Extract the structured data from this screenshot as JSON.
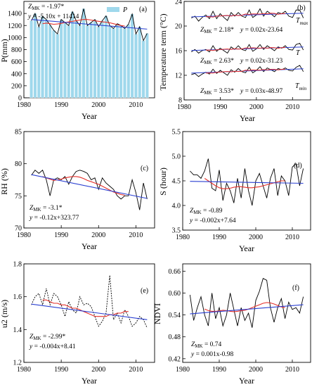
{
  "chart_data": [
    {
      "panel": "(a)",
      "type": "bar+line",
      "ylabel": "P(mm)",
      "xlabel": "Year",
      "xlim": [
        1980,
        2015
      ],
      "ylim": [
        0,
        1600
      ],
      "xticks": [
        1980,
        1990,
        2000,
        2010
      ],
      "yticks": [
        0,
        200,
        400,
        600,
        800,
        1000,
        1200,
        1400
      ],
      "legend": "P",
      "legend_position": "top-right",
      "annotations": [
        "Z_MK = -1.97*",
        "y = -5.10x + 11414"
      ],
      "x": [
        1982,
        1983,
        1984,
        1985,
        1986,
        1987,
        1988,
        1989,
        1990,
        1991,
        1992,
        1993,
        1994,
        1995,
        1996,
        1997,
        1998,
        1999,
        2000,
        2001,
        2002,
        2003,
        2004,
        2005,
        2006,
        2007,
        2008,
        2009,
        2010,
        2011,
        2012,
        2013
      ],
      "series": [
        {
          "name": "P",
          "kind": "bar",
          "values": [
            1280,
            1400,
            1180,
            1350,
            1300,
            1210,
            1120,
            1060,
            1300,
            1250,
            1200,
            1430,
            1280,
            1200,
            1480,
            1200,
            1250,
            1300,
            1180,
            1280,
            1360,
            1200,
            1150,
            1230,
            1200,
            1150,
            1220,
            1390,
            1060,
            1180,
            950,
            1070
          ]
        },
        {
          "kind": "smooth",
          "values": [
            null,
            null,
            null,
            1230,
            1240,
            1230,
            1220,
            1225,
            1235,
            1250,
            1260,
            1270,
            1280,
            1290,
            1300,
            1300,
            1290,
            1280,
            1270,
            1260,
            1255,
            1245,
            1230,
            1215,
            1200,
            1190,
            null,
            null,
            null,
            null,
            null,
            null
          ]
        },
        {
          "kind": "trend",
          "values": [
            1300,
            null,
            null,
            null,
            null,
            null,
            null,
            null,
            null,
            null,
            null,
            null,
            null,
            null,
            null,
            null,
            null,
            null,
            null,
            null,
            null,
            null,
            null,
            null,
            null,
            null,
            null,
            null,
            null,
            null,
            null,
            1140
          ]
        }
      ]
    },
    {
      "panel": "(b)",
      "type": "line",
      "ylabel": "Temperature term (°C)",
      "xlabel": "Year",
      "xlim": [
        1980,
        2015
      ],
      "ylim": [
        8,
        24
      ],
      "xticks": [
        1980,
        1990,
        2000,
        2010
      ],
      "yticks": [
        8,
        12,
        16,
        20,
        24
      ],
      "x": [
        1982,
        1983,
        1984,
        1985,
        1986,
        1987,
        1988,
        1989,
        1990,
        1991,
        1992,
        1993,
        1994,
        1995,
        1996,
        1997,
        1998,
        1999,
        2000,
        2001,
        2002,
        2003,
        2004,
        2005,
        2006,
        2007,
        2008,
        2009,
        2010,
        2011,
        2012,
        2013
      ],
      "series": [
        {
          "label": "T_max",
          "values": [
            21.3,
            21.6,
            20.8,
            21.4,
            21.8,
            21.2,
            22.4,
            21.2,
            22.0,
            21.4,
            20.9,
            22.2,
            21.6,
            22.2,
            21.6,
            21.4,
            22.6,
            21.4,
            21.8,
            22.8,
            21.6,
            22.4,
            22.0,
            21.5,
            22.2,
            22.0,
            22.4,
            21.6,
            21.4,
            22.6,
            22.6,
            21.3
          ],
          "annotation": [
            "Z_MK = 2.18*",
            "y = 0.02x-23.64"
          ]
        },
        {
          "label": "T",
          "values": [
            15.8,
            16.2,
            15.6,
            16.0,
            16.2,
            15.8,
            16.8,
            15.9,
            16.4,
            16.0,
            15.6,
            16.6,
            16.2,
            16.8,
            16.2,
            16.0,
            17.0,
            15.9,
            16.3,
            17.0,
            16.2,
            16.8,
            16.4,
            16.0,
            16.6,
            16.4,
            16.8,
            16.2,
            16.1,
            17.0,
            17.2,
            16.1
          ],
          "annotation": [
            "Z_MK = 2.63*",
            "y = 0.02x-31.23"
          ]
        },
        {
          "label": "T_min",
          "values": [
            12.1,
            12.3,
            11.8,
            12.2,
            12.5,
            12.2,
            13.0,
            12.3,
            12.8,
            12.4,
            12.0,
            12.9,
            12.5,
            13.1,
            12.6,
            12.4,
            13.3,
            12.4,
            12.8,
            13.4,
            12.6,
            13.2,
            12.9,
            12.6,
            13.1,
            12.9,
            13.2,
            12.8,
            12.7,
            13.3,
            13.6,
            12.6
          ],
          "annotation": [
            "Z_MK = 3.53*",
            "y = 0.03x-48.97"
          ]
        }
      ]
    },
    {
      "panel": "(c)",
      "type": "line",
      "ylabel": "RH (%)",
      "xlabel": "Year",
      "xlim": [
        1980,
        2015
      ],
      "ylim": [
        70,
        85
      ],
      "xticks": [
        1980,
        1990,
        2000,
        2010
      ],
      "yticks": [
        70,
        75,
        80,
        85
      ],
      "annotations": [
        "Z_MK = -3.1*",
        "y = -0.12x+323.77"
      ],
      "x": [
        1982,
        1983,
        1984,
        1985,
        1986,
        1987,
        1988,
        1989,
        1990,
        1991,
        1992,
        1993,
        1994,
        1995,
        1996,
        1997,
        1998,
        1999,
        2000,
        2001,
        2002,
        2003,
        2004,
        2005,
        2006,
        2007,
        2008,
        2009,
        2010,
        2011,
        2012,
        2013
      ],
      "series": [
        {
          "kind": "observed",
          "values": [
            78.2,
            79.0,
            78.5,
            79.0,
            77.5,
            75.0,
            77.5,
            77.8,
            77.5,
            78.0,
            76.8,
            78.0,
            78.8,
            79.0,
            78.8,
            78.5,
            77.5,
            77.8,
            76.0,
            77.8,
            77.0,
            76.5,
            76.0,
            75.0,
            74.5,
            75.0,
            75.0,
            77.5,
            75.5,
            72.8,
            77.0,
            74.5
          ]
        },
        {
          "kind": "smooth",
          "values": [
            null,
            null,
            null,
            78.0,
            77.8,
            77.6,
            77.4,
            77.5,
            77.6,
            77.8,
            77.9,
            78.0,
            78.0,
            77.9,
            77.7,
            77.4,
            77.2,
            77.0,
            76.8,
            76.5,
            76.2,
            75.9,
            75.6,
            75.4,
            75.2,
            75.1,
            null,
            null,
            null,
            null,
            null,
            null
          ]
        },
        {
          "kind": "trend",
          "values": [
            78.3,
            null,
            null,
            null,
            null,
            null,
            null,
            null,
            null,
            null,
            null,
            null,
            null,
            null,
            null,
            null,
            null,
            null,
            null,
            null,
            null,
            null,
            null,
            null,
            null,
            null,
            null,
            null,
            null,
            null,
            null,
            74.6
          ]
        }
      ]
    },
    {
      "panel": "(d)",
      "type": "line",
      "ylabel": "S (hour)",
      "xlabel": "Year",
      "xlim": [
        1980,
        2015
      ],
      "ylim": [
        3.5,
        5.5
      ],
      "xticks": [
        1980,
        1990,
        2000,
        2010
      ],
      "yticks": [
        3.5,
        4.0,
        4.5,
        5.0,
        5.5
      ],
      "annotations": [
        "Z_MK = -0.89",
        "y = -0.002x+7.64"
      ],
      "x": [
        1982,
        1983,
        1984,
        1985,
        1986,
        1987,
        1988,
        1989,
        1990,
        1991,
        1992,
        1993,
        1994,
        1995,
        1996,
        1997,
        1998,
        1999,
        2000,
        2001,
        2002,
        2003,
        2004,
        2005,
        2006,
        2007,
        2008,
        2009,
        2010,
        2011,
        2012,
        2013
      ],
      "series": [
        {
          "kind": "observed",
          "values": [
            4.7,
            4.62,
            4.62,
            4.55,
            4.7,
            4.95,
            4.35,
            4.3,
            4.72,
            4.1,
            4.45,
            4.3,
            4.05,
            4.55,
            4.15,
            4.75,
            4.3,
            4.0,
            4.5,
            4.65,
            4.4,
            4.15,
            4.55,
            4.75,
            4.2,
            4.6,
            4.5,
            4.2,
            4.78,
            4.85,
            4.4,
            4.75
          ]
        },
        {
          "kind": "smooth",
          "values": [
            null,
            null,
            null,
            null,
            4.55,
            4.5,
            4.45,
            4.4,
            4.36,
            4.34,
            4.34,
            4.35,
            4.37,
            4.38,
            4.38,
            4.37,
            4.36,
            4.36,
            4.37,
            4.38,
            4.4,
            4.42,
            4.44,
            4.46,
            4.48,
            4.5,
            4.5,
            null,
            null,
            null,
            null,
            null
          ]
        },
        {
          "kind": "trend",
          "values": [
            4.49,
            null,
            null,
            null,
            null,
            null,
            null,
            null,
            null,
            null,
            null,
            null,
            null,
            null,
            null,
            null,
            null,
            null,
            null,
            null,
            null,
            null,
            null,
            null,
            null,
            null,
            null,
            null,
            null,
            null,
            null,
            4.45
          ]
        }
      ]
    },
    {
      "panel": "(e)",
      "type": "line",
      "ylabel": "u2 (m/s)",
      "xlabel": "Year",
      "xlim": [
        1980,
        2015
      ],
      "ylim": [
        1.2,
        1.8
      ],
      "xticks": [
        1980,
        1990,
        2000,
        2010
      ],
      "yticks": [
        1.2,
        1.4,
        1.6,
        1.8
      ],
      "annotations": [
        "Z_MK = -2.99*",
        "y = -0.004x+8.41"
      ],
      "x": [
        1982,
        1983,
        1984,
        1985,
        1986,
        1987,
        1988,
        1989,
        1990,
        1991,
        1992,
        1993,
        1994,
        1995,
        1996,
        1997,
        1998,
        1999,
        2000,
        2001,
        2002,
        2003,
        2004,
        2005,
        2006,
        2007,
        2008,
        2009,
        2010,
        2011,
        2012,
        2013
      ],
      "series": [
        {
          "kind": "observed",
          "values": [
            1.55,
            1.6,
            1.62,
            1.55,
            1.65,
            1.55,
            1.62,
            1.6,
            1.55,
            1.48,
            1.57,
            1.52,
            1.5,
            1.6,
            1.55,
            1.56,
            1.54,
            1.48,
            1.42,
            1.45,
            1.5,
            1.73,
            1.46,
            1.5,
            1.44,
            1.52,
            1.48,
            1.42,
            1.44,
            1.48,
            1.46,
            1.41
          ]
        },
        {
          "kind": "smooth",
          "values": [
            null,
            null,
            null,
            1.58,
            1.58,
            1.57,
            1.56,
            1.56,
            1.55,
            1.55,
            1.54,
            1.53,
            1.53,
            1.52,
            1.51,
            1.5,
            1.49,
            1.48,
            1.48,
            1.48,
            1.48,
            1.49,
            1.49,
            1.5,
            1.5,
            1.51,
            1.51,
            null,
            null,
            null,
            null,
            null
          ]
        },
        {
          "kind": "trend",
          "values": [
            1.555,
            null,
            null,
            null,
            null,
            null,
            null,
            null,
            null,
            null,
            null,
            null,
            null,
            null,
            null,
            null,
            null,
            null,
            null,
            null,
            null,
            null,
            null,
            null,
            null,
            null,
            null,
            null,
            null,
            null,
            null,
            1.46
          ]
        }
      ]
    },
    {
      "panel": "(f)",
      "type": "line",
      "ylabel": "NDVI",
      "xlabel": "Year",
      "xlim": [
        1980,
        2015
      ],
      "ylim": [
        0.41,
        0.68
      ],
      "xticks": [
        1980,
        1990,
        2000,
        2010
      ],
      "yticks": [
        0.42,
        0.48,
        0.54,
        0.6,
        0.66
      ],
      "annotations": [
        "Z_MK = 0.74",
        "y = 0.001x-0.98"
      ],
      "x": [
        1982,
        1983,
        1984,
        1985,
        1986,
        1987,
        1988,
        1989,
        1990,
        1991,
        1992,
        1993,
        1994,
        1995,
        1996,
        1997,
        1998,
        1999,
        2000,
        2001,
        2002,
        2003,
        2004,
        2005,
        2006,
        2007,
        2008,
        2009,
        2010,
        2011,
        2012,
        2013
      ],
      "series": [
        {
          "kind": "observed",
          "values": [
            0.595,
            0.525,
            0.56,
            0.59,
            0.54,
            0.51,
            0.6,
            0.53,
            0.56,
            0.51,
            0.54,
            0.6,
            0.555,
            0.51,
            0.56,
            0.525,
            0.545,
            0.505,
            0.58,
            0.605,
            0.64,
            0.635,
            0.56,
            0.52,
            0.56,
            0.585,
            0.53,
            0.575,
            0.555,
            0.56,
            0.545,
            0.59
          ]
        },
        {
          "kind": "smooth",
          "values": [
            null,
            null,
            null,
            null,
            0.556,
            0.552,
            0.55,
            0.55,
            0.551,
            0.553,
            0.552,
            0.55,
            0.549,
            0.55,
            0.552,
            0.553,
            0.556,
            0.56,
            0.564,
            0.568,
            0.572,
            0.574,
            0.573,
            0.57,
            0.566,
            0.562,
            0.56,
            null,
            null,
            null,
            null,
            null
          ]
        },
        {
          "kind": "trend",
          "values": [
            0.543,
            null,
            null,
            null,
            null,
            null,
            null,
            null,
            null,
            null,
            null,
            null,
            null,
            null,
            null,
            null,
            null,
            null,
            null,
            null,
            null,
            null,
            null,
            null,
            null,
            null,
            null,
            null,
            null,
            null,
            null,
            0.568
          ]
        }
      ]
    }
  ],
  "colors": {
    "bar_fill": "#9fd8ec",
    "bar_edge": "#ffffff",
    "observed": "#000000",
    "smooth": "#e5302a",
    "trend": "#2a3fd1"
  }
}
